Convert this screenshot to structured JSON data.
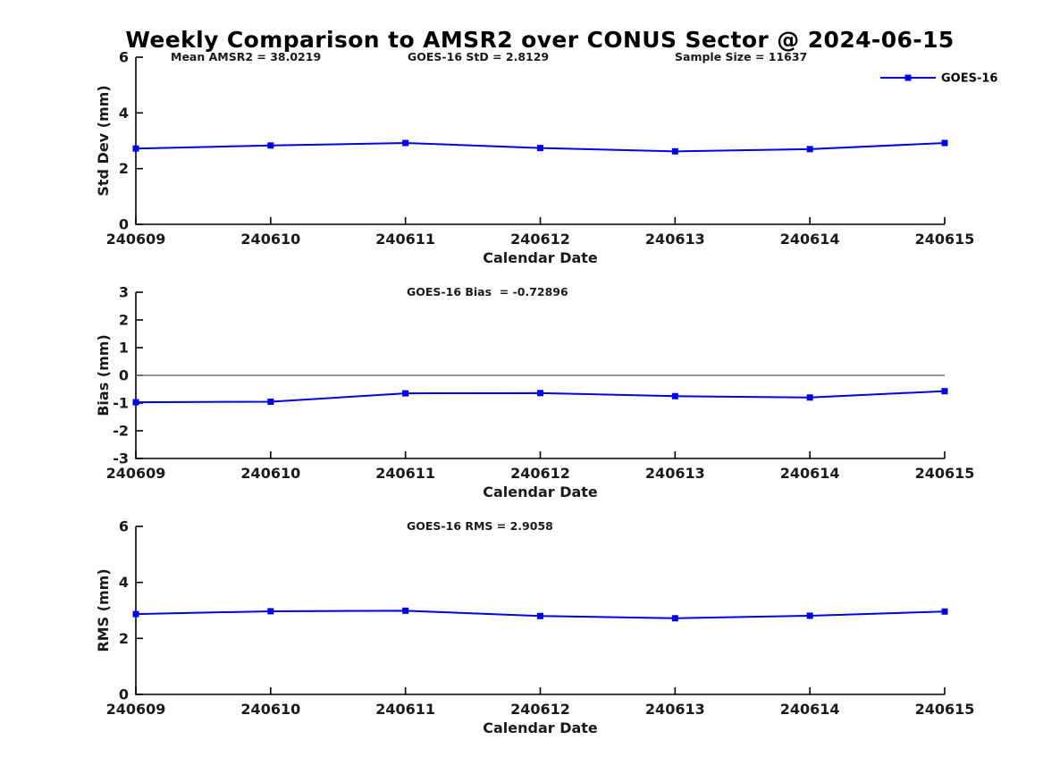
{
  "title": "Weekly Comparison to AMSR2 over CONUS Sector @ 2024-06-15",
  "colors": {
    "series": "#0000EE",
    "zero_line": "#777777",
    "axis": "#000000"
  },
  "chart_data": [
    {
      "type": "line",
      "id": "stddev",
      "x": [
        "240609",
        "240610",
        "240611",
        "240612",
        "240613",
        "240614",
        "240615"
      ],
      "series": [
        {
          "name": "GOES-16",
          "values": [
            2.72,
            2.83,
            2.92,
            2.74,
            2.62,
            2.7,
            2.92
          ]
        }
      ],
      "ylabel": "Std Dev (mm)",
      "xlabel": "Calendar Date",
      "ylim": [
        0,
        6
      ],
      "yticks": [
        0,
        2,
        4,
        6
      ],
      "grid": false,
      "zero_line": false,
      "legend": {
        "label": "GOES-16",
        "position": "top-right"
      },
      "annotations": [
        "Mean AMSR2 = 38.0219",
        "GOES-16 StD = 2.8129",
        "Sample Size = 11637"
      ]
    },
    {
      "type": "line",
      "id": "bias",
      "x": [
        "240609",
        "240610",
        "240611",
        "240612",
        "240613",
        "240614",
        "240615"
      ],
      "series": [
        {
          "name": "GOES-16",
          "values": [
            -0.97,
            -0.95,
            -0.65,
            -0.64,
            -0.75,
            -0.8,
            -0.57
          ]
        }
      ],
      "ylabel": "Bias (mm)",
      "xlabel": "Calendar Date",
      "ylim": [
        -3,
        3
      ],
      "yticks": [
        3,
        2,
        1,
        0,
        -1,
        -2,
        -3
      ],
      "grid": false,
      "zero_line": true,
      "legend": null,
      "annotations": [
        "GOES-16 Bias  = -0.72896"
      ]
    },
    {
      "type": "line",
      "id": "rms",
      "x": [
        "240609",
        "240610",
        "240611",
        "240612",
        "240613",
        "240614",
        "240615"
      ],
      "series": [
        {
          "name": "GOES-16",
          "values": [
            2.87,
            2.97,
            2.99,
            2.8,
            2.72,
            2.81,
            2.96
          ]
        }
      ],
      "ylabel": "RMS (mm)",
      "xlabel": "Calendar Date",
      "ylim": [
        0,
        6
      ],
      "yticks": [
        0,
        2,
        4,
        6
      ],
      "grid": false,
      "zero_line": false,
      "legend": null,
      "annotations": [
        "GOES-16 RMS = 2.9058"
      ]
    }
  ]
}
